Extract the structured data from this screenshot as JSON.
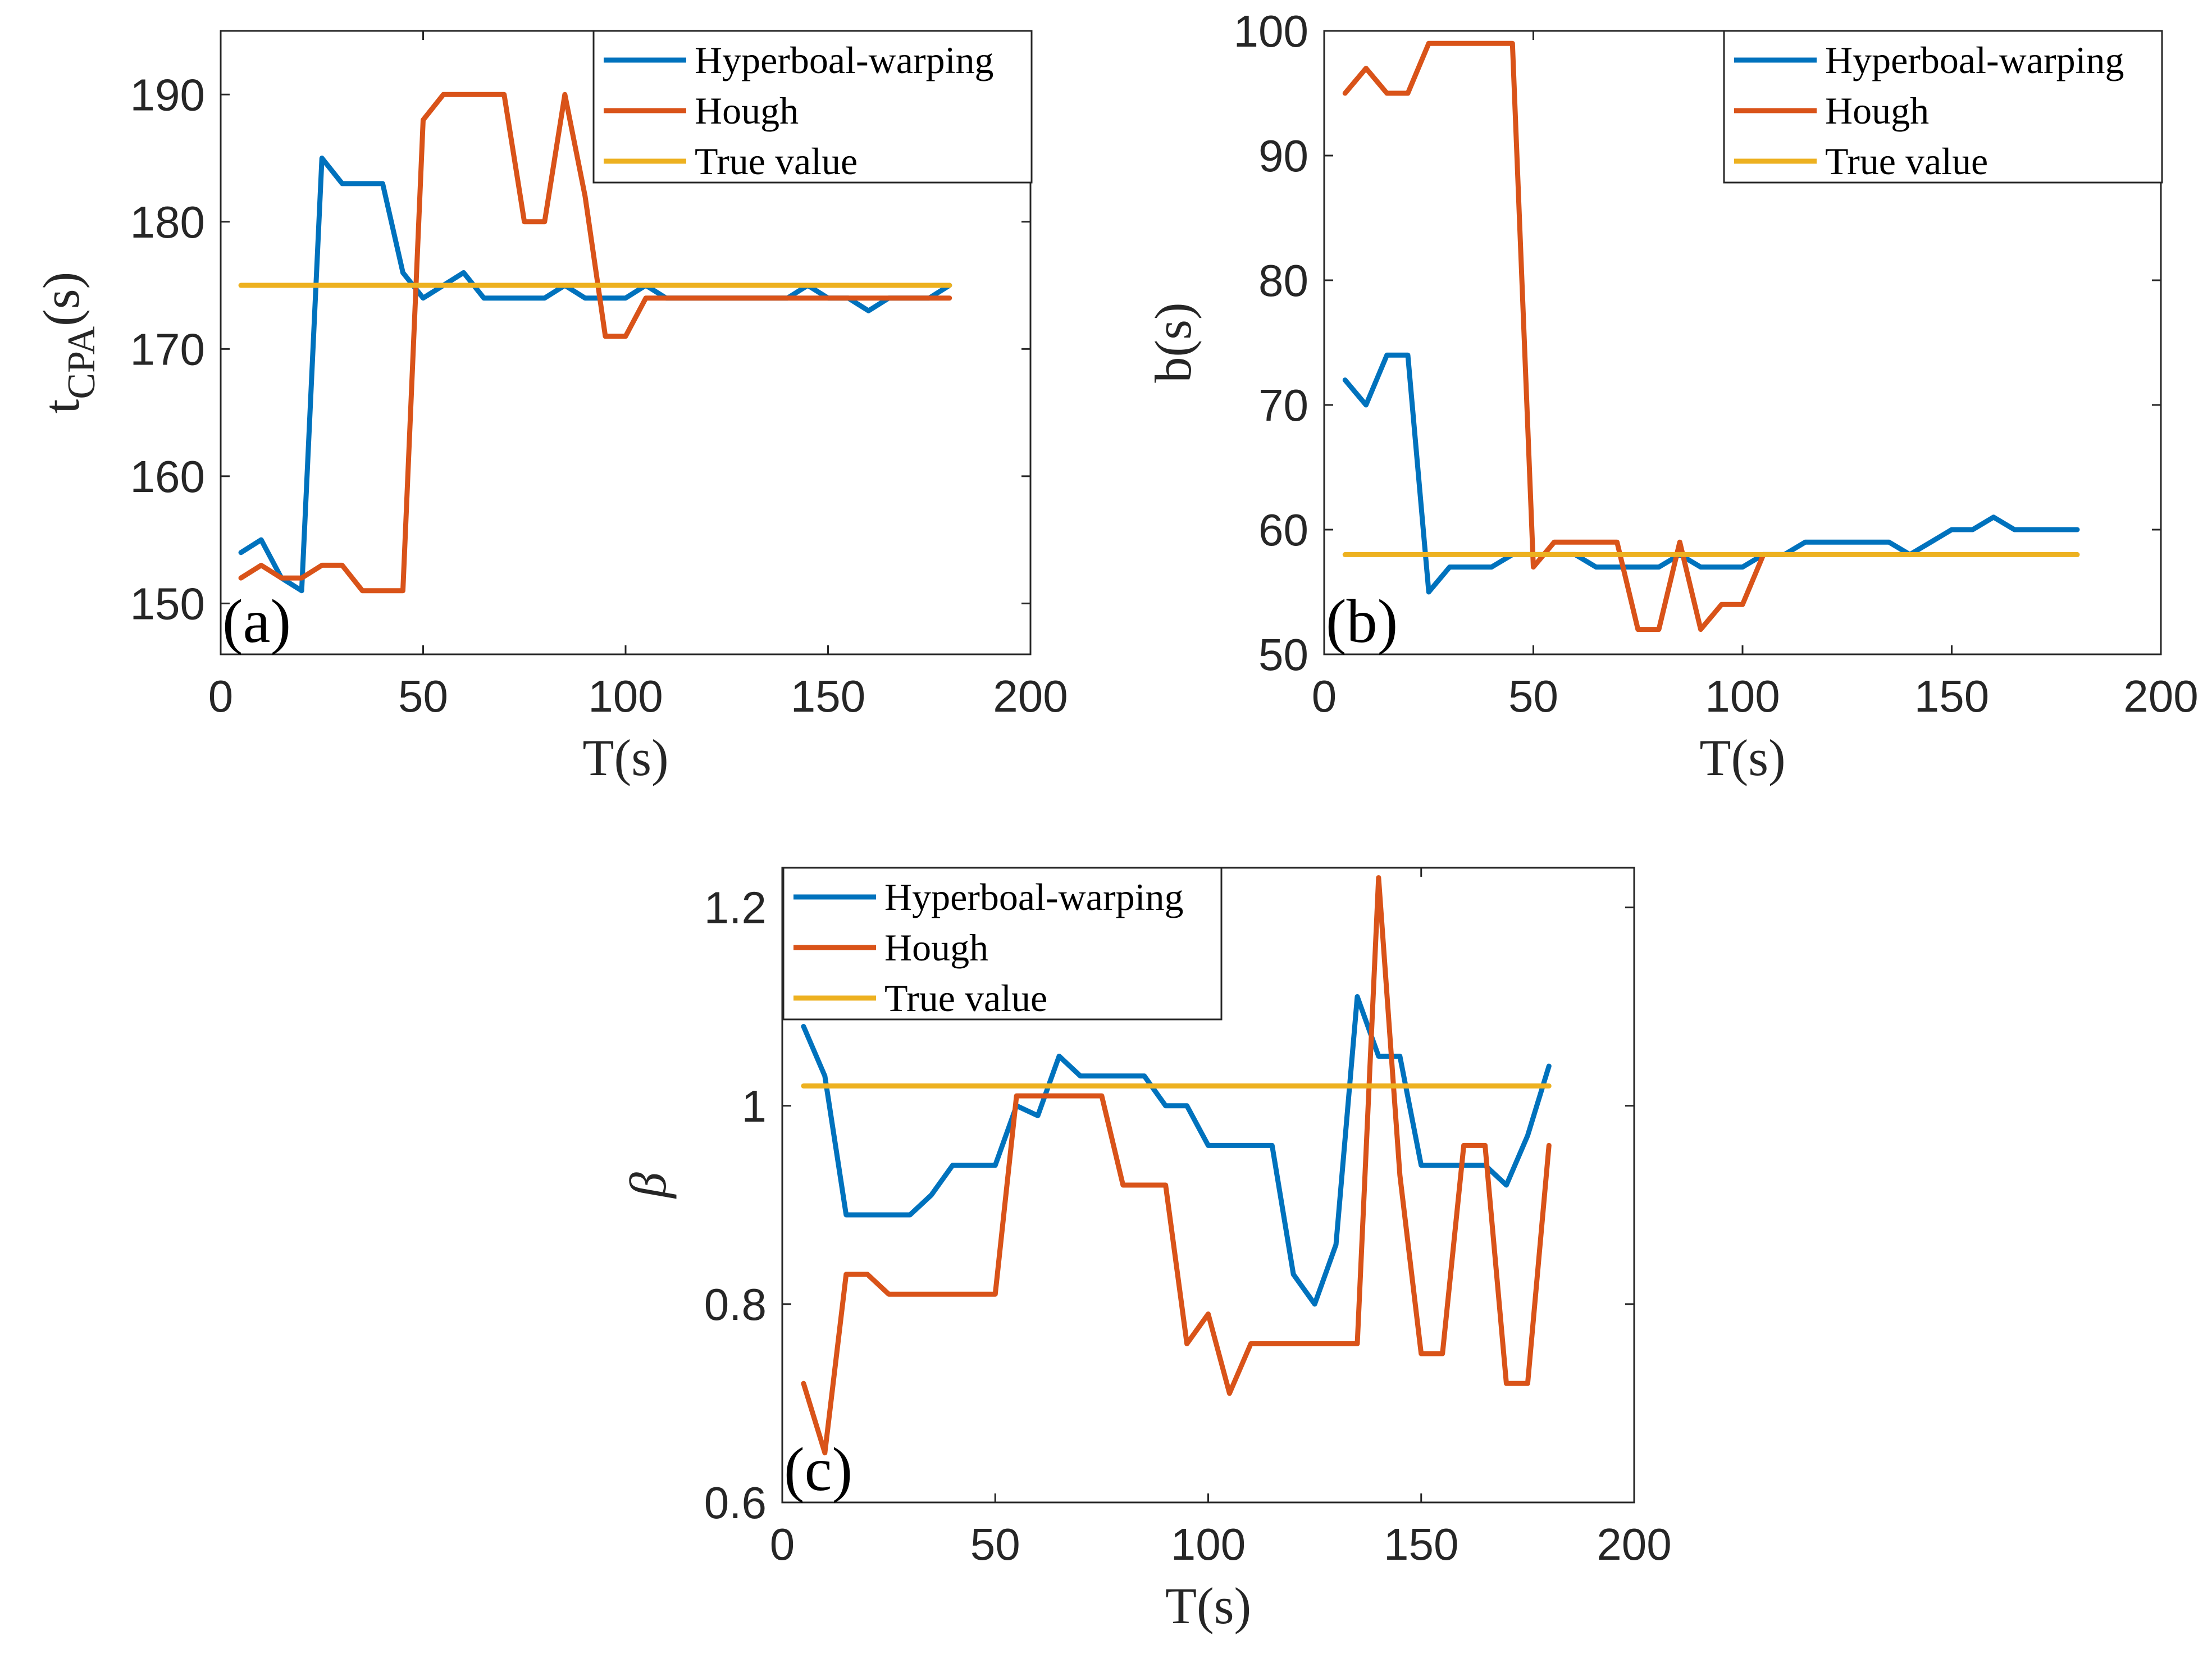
{
  "chart_data": [
    {
      "type": "line",
      "panel_label": "(a)",
      "xlabel": "T(s)",
      "ylabel_main": "t",
      "ylabel_sub": "CPA",
      "ylabel_suffix": "(s)",
      "xlim": [
        0,
        200
      ],
      "ylim": [
        146,
        195
      ],
      "xticks": [
        0,
        50,
        100,
        150,
        200
      ],
      "yticks": [
        150,
        160,
        170,
        180,
        190
      ],
      "legend_position": "top-right",
      "series": [
        {
          "name": "Hyperboal-warping",
          "color": "#0072BD",
          "x": [
            5,
            10,
            15,
            20,
            25,
            30,
            35,
            40,
            45,
            50,
            55,
            60,
            65,
            70,
            75,
            80,
            85,
            90,
            95,
            100,
            105,
            110,
            115,
            120,
            125,
            130,
            135,
            140,
            145,
            150,
            155,
            160,
            165,
            170,
            175,
            180
          ],
          "y": [
            154,
            155,
            152,
            151,
            185,
            183,
            183,
            183,
            176,
            174,
            175,
            176,
            174,
            174,
            174,
            174,
            175,
            174,
            174,
            174,
            175,
            174,
            174,
            174,
            174,
            174,
            174,
            174,
            175,
            174,
            174,
            173,
            174,
            174,
            174,
            175
          ]
        },
        {
          "name": "Hough",
          "color": "#D95319",
          "x": [
            5,
            10,
            15,
            20,
            25,
            30,
            35,
            40,
            45,
            50,
            55,
            60,
            65,
            70,
            75,
            80,
            85,
            90,
            95,
            100,
            105,
            110,
            115,
            120,
            125,
            130,
            135,
            140,
            145,
            150,
            155,
            160,
            165,
            170,
            175,
            180
          ],
          "y": [
            152,
            153,
            152,
            152,
            153,
            153,
            151,
            151,
            151,
            188,
            190,
            190,
            190,
            190,
            180,
            180,
            190,
            182,
            171,
            171,
            174,
            174,
            174,
            174,
            174,
            174,
            174,
            174,
            174,
            174,
            174,
            174,
            174,
            174,
            174,
            174
          ]
        },
        {
          "name": "True value",
          "color": "#EDB120",
          "x": [
            5,
            180
          ],
          "y": [
            175,
            175
          ]
        }
      ]
    },
    {
      "type": "line",
      "panel_label": "(b)",
      "xlabel": "T(s)",
      "ylabel_main": "b(s)",
      "xlim": [
        0,
        200
      ],
      "ylim": [
        50,
        100
      ],
      "xticks": [
        0,
        50,
        100,
        150,
        200
      ],
      "yticks": [
        50,
        60,
        70,
        80,
        90,
        100
      ],
      "legend_position": "top-right",
      "series": [
        {
          "name": "Hyperboal-warping",
          "color": "#0072BD",
          "x": [
            5,
            10,
            15,
            20,
            25,
            30,
            35,
            40,
            45,
            50,
            55,
            60,
            65,
            70,
            75,
            80,
            85,
            90,
            95,
            100,
            105,
            110,
            115,
            120,
            125,
            130,
            135,
            140,
            145,
            150,
            155,
            160,
            165,
            170,
            175,
            180
          ],
          "y": [
            72,
            70,
            74,
            74,
            55,
            57,
            57,
            57,
            58,
            58,
            58,
            58,
            57,
            57,
            57,
            57,
            58,
            57,
            57,
            57,
            58,
            58,
            59,
            59,
            59,
            59,
            59,
            58,
            59,
            60,
            60,
            61,
            60,
            60,
            60,
            60
          ]
        },
        {
          "name": "Hough",
          "color": "#D95319",
          "x": [
            5,
            10,
            15,
            20,
            25,
            30,
            35,
            40,
            45,
            50,
            55,
            60,
            65,
            70,
            75,
            80,
            85,
            90,
            95,
            100,
            105
          ],
          "y": [
            95,
            97,
            95,
            95,
            99,
            99,
            99,
            99,
            99,
            57,
            59,
            59,
            59,
            59,
            52,
            52,
            59,
            52,
            54,
            54,
            58
          ]
        },
        {
          "name": "True value",
          "color": "#EDB120",
          "x": [
            5,
            180
          ],
          "y": [
            58,
            58
          ]
        }
      ]
    },
    {
      "type": "line",
      "panel_label": "(c)",
      "xlabel": "T(s)",
      "ylabel_main": "β",
      "xlim": [
        0,
        200
      ],
      "ylim": [
        0.6,
        1.24
      ],
      "xticks": [
        0,
        50,
        100,
        150,
        200
      ],
      "yticks": [
        0.6,
        0.8,
        1,
        1.2
      ],
      "legend_position": "top-left",
      "series": [
        {
          "name": "Hyperboal-warping",
          "color": "#0072BD",
          "x": [
            5,
            10,
            15,
            20,
            25,
            30,
            35,
            40,
            45,
            50,
            55,
            60,
            65,
            70,
            75,
            80,
            85,
            90,
            95,
            100,
            105,
            110,
            115,
            120,
            125,
            130,
            135,
            140,
            145,
            150,
            155,
            160,
            165,
            170,
            175,
            180
          ],
          "y": [
            1.08,
            1.03,
            0.89,
            0.89,
            0.89,
            0.89,
            0.91,
            0.94,
            0.94,
            0.94,
            1.0,
            0.99,
            1.05,
            1.03,
            1.03,
            1.03,
            1.03,
            1.0,
            1.0,
            0.96,
            0.96,
            0.96,
            0.96,
            0.83,
            0.8,
            0.86,
            1.11,
            1.05,
            1.05,
            0.94,
            0.94,
            0.94,
            0.94,
            0.92,
            0.97,
            1.04
          ]
        },
        {
          "name": "Hough",
          "color": "#D95319",
          "x": [
            5,
            10,
            15,
            20,
            25,
            30,
            35,
            40,
            45,
            50,
            55,
            60,
            65,
            70,
            75,
            80,
            85,
            90,
            95,
            100,
            105,
            110,
            115,
            120,
            125,
            130,
            135,
            140,
            145,
            150,
            155,
            160,
            165,
            170,
            175,
            180
          ],
          "y": [
            0.72,
            0.65,
            0.83,
            0.83,
            0.81,
            0.81,
            0.81,
            0.81,
            0.81,
            0.81,
            1.01,
            1.01,
            1.01,
            1.01,
            1.01,
            0.92,
            0.92,
            0.92,
            0.76,
            0.79,
            0.71,
            0.76,
            0.76,
            0.76,
            0.76,
            0.76,
            0.76,
            1.23,
            0.93,
            0.75,
            0.75,
            0.96,
            0.96,
            0.72,
            0.72,
            0.96
          ]
        },
        {
          "name": "True value",
          "color": "#EDB120",
          "x": [
            5,
            180
          ],
          "y": [
            1.02,
            1.02
          ]
        }
      ]
    }
  ]
}
